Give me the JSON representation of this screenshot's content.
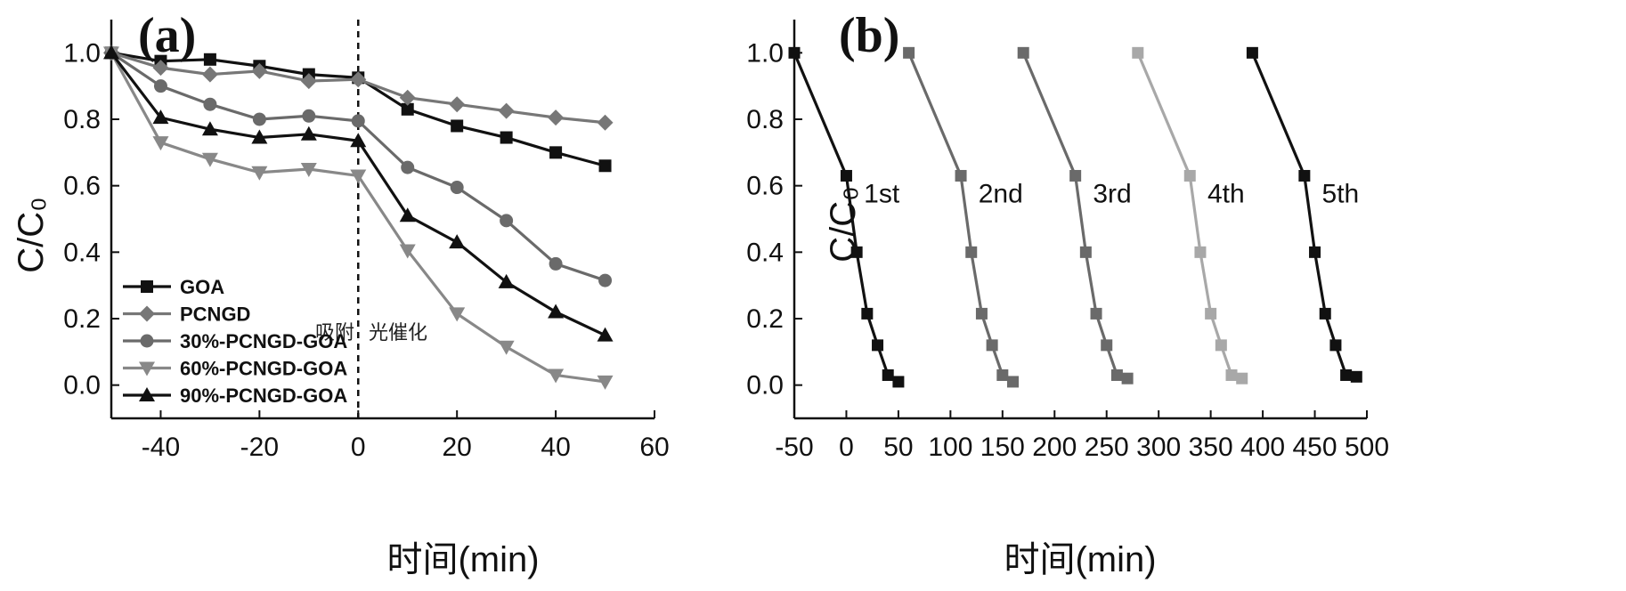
{
  "colors": {
    "axis": "#111111",
    "black": "#111111",
    "gray": "#777777",
    "light_gray": "#a8a8a8"
  },
  "chart_data": [
    {
      "type": "line",
      "panel_label": "(a)",
      "xlabel": "时间(min)",
      "ylabel": "C/C₀",
      "xlim": [
        -50,
        60
      ],
      "ylim": [
        -0.1,
        1.1
      ],
      "xticks": [
        -40,
        -20,
        0,
        20,
        40,
        60
      ],
      "yticks": [
        0.0,
        0.2,
        0.4,
        0.6,
        0.8,
        1.0
      ],
      "x": [
        -50,
        -40,
        -30,
        -20,
        -10,
        0,
        10,
        20,
        30,
        40,
        50
      ],
      "legend_position": "bottom-left",
      "series": [
        {
          "name": "GOA",
          "marker": "square",
          "color": "#111111",
          "values": [
            1.0,
            0.975,
            0.98,
            0.96,
            0.935,
            0.925,
            0.83,
            0.78,
            0.745,
            0.7,
            0.66
          ]
        },
        {
          "name": "PCNGD",
          "marker": "diamond",
          "color": "#777777",
          "values": [
            1.0,
            0.955,
            0.935,
            0.945,
            0.915,
            0.92,
            0.865,
            0.845,
            0.825,
            0.805,
            0.79
          ]
        },
        {
          "name": "30%-PCNGD-GOA",
          "marker": "circle",
          "color": "#6a6a6a",
          "values": [
            1.0,
            0.9,
            0.845,
            0.8,
            0.81,
            0.795,
            0.655,
            0.595,
            0.495,
            0.365,
            0.315
          ]
        },
        {
          "name": "60%-PCNGD-GOA",
          "marker": "triangle-down",
          "color": "#888888",
          "values": [
            1.0,
            0.73,
            0.68,
            0.64,
            0.65,
            0.63,
            0.405,
            0.215,
            0.115,
            0.03,
            0.01
          ]
        },
        {
          "name": "90%-PCNGD-GOA",
          "marker": "triangle-up",
          "color": "#111111",
          "values": [
            1.0,
            0.805,
            0.77,
            0.745,
            0.755,
            0.735,
            0.51,
            0.43,
            0.31,
            0.22,
            0.15
          ]
        }
      ],
      "divider": {
        "x": 0,
        "style": "dashed"
      },
      "annotations": {
        "left": "吸附",
        "right": "光催化"
      }
    },
    {
      "type": "line",
      "panel_label": "(b)",
      "xlabel": "时间(min)",
      "ylabel": "C/C₀",
      "xlim": [
        -50,
        500
      ],
      "ylim": [
        -0.1,
        1.1
      ],
      "xticks": [
        -50,
        0,
        50,
        100,
        150,
        200,
        250,
        300,
        350,
        400,
        450,
        500
      ],
      "yticks": [
        0.0,
        0.2,
        0.4,
        0.6,
        0.8,
        1.0
      ],
      "series": [
        {
          "name": "1st",
          "color": "#111111",
          "x": [
            -50,
            0,
            10,
            20,
            30,
            40,
            50
          ],
          "values": [
            1.0,
            0.63,
            0.4,
            0.215,
            0.12,
            0.03,
            0.01
          ]
        },
        {
          "name": "2nd",
          "color": "#6a6a6a",
          "x": [
            60,
            110,
            120,
            130,
            140,
            150,
            160
          ],
          "values": [
            1.0,
            0.63,
            0.4,
            0.215,
            0.12,
            0.03,
            0.01
          ]
        },
        {
          "name": "3rd",
          "color": "#6a6a6a",
          "x": [
            170,
            220,
            230,
            240,
            250,
            260,
            270
          ],
          "values": [
            1.0,
            0.63,
            0.4,
            0.215,
            0.12,
            0.03,
            0.02
          ]
        },
        {
          "name": "4th",
          "color": "#a8a8a8",
          "x": [
            280,
            330,
            340,
            350,
            360,
            370,
            380
          ],
          "values": [
            1.0,
            0.63,
            0.4,
            0.215,
            0.12,
            0.03,
            0.02
          ]
        },
        {
          "name": "5th",
          "color": "#111111",
          "x": [
            390,
            440,
            450,
            460,
            470,
            480,
            490
          ],
          "values": [
            1.0,
            0.63,
            0.4,
            0.215,
            0.12,
            0.03,
            0.025
          ]
        }
      ]
    }
  ]
}
